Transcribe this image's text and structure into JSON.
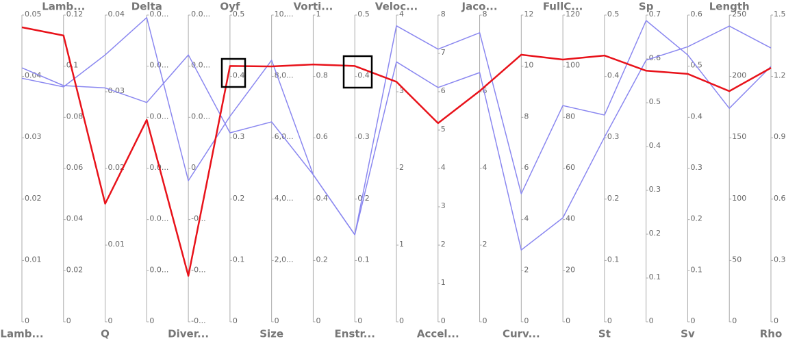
{
  "chart_data": {
    "type": "parallel",
    "dimensions": [
      {
        "name": "Lamb...",
        "lim": [
          0,
          0.05
        ],
        "ticks": [
          0,
          0.01,
          0.02,
          0.03,
          0.04,
          0.05
        ]
      },
      {
        "name": "Lamb...",
        "lim": [
          0,
          0.12
        ],
        "ticks": [
          0,
          0.02,
          0.04,
          0.06,
          0.08,
          0.1,
          0.12
        ]
      },
      {
        "name": "Q",
        "lim": [
          0,
          0.04
        ],
        "ticks": [
          0,
          0.01,
          0.02,
          0.03,
          0.04
        ]
      },
      {
        "name": "Delta",
        "lim": [
          0,
          0.06
        ],
        "ticks": [
          0,
          {
            "value": 0.01,
            "label": "0.0..."
          },
          {
            "value": 0.02,
            "label": "0.0..."
          },
          {
            "value": 0.03,
            "label": "0.0..."
          },
          {
            "value": 0.04,
            "label": "0.0..."
          },
          {
            "value": 0.05,
            "label": "0.0..."
          },
          {
            "value": 0.06,
            "label": "0.0..."
          }
        ]
      },
      {
        "name": "Diver...",
        "lim": [
          -0.03,
          0.03
        ],
        "ticks": [
          {
            "value": -0.03,
            "label": "-0..."
          },
          {
            "value": -0.02,
            "label": "-0..."
          },
          {
            "value": -0.01,
            "label": "-0..."
          },
          0,
          {
            "value": 0.01,
            "label": "0.0..."
          },
          {
            "value": 0.02,
            "label": "0.0..."
          },
          {
            "value": 0.03,
            "label": "0.0..."
          }
        ]
      },
      {
        "name": "Oyf",
        "lim": [
          0,
          0.5
        ],
        "ticks": [
          0,
          0.1,
          0.2,
          0.3,
          0.4,
          0.5
        ]
      },
      {
        "name": "Size",
        "lim": [
          0,
          10000
        ],
        "ticks": [
          0,
          {
            "value": 2000,
            "label": "2,0..."
          },
          {
            "value": 4000,
            "label": "4,0..."
          },
          {
            "value": 6000,
            "label": "6,0..."
          },
          {
            "value": 8000,
            "label": "8,0..."
          },
          {
            "value": 10000,
            "label": "10,..."
          }
        ]
      },
      {
        "name": "Vorti...",
        "lim": [
          0,
          1
        ],
        "ticks": [
          0,
          0.2,
          0.4,
          0.6,
          0.8,
          1
        ]
      },
      {
        "name": "Enstr...",
        "lim": [
          0,
          0.5
        ],
        "ticks": [
          0,
          0.1,
          0.2,
          0.3,
          0.4,
          0.5
        ]
      },
      {
        "name": "Veloc...",
        "lim": [
          0,
          4
        ],
        "ticks": [
          0,
          1,
          2,
          3,
          4
        ]
      },
      {
        "name": "Accel...",
        "lim": [
          0,
          8
        ],
        "ticks": [
          0,
          1,
          2,
          3,
          4,
          5,
          6,
          7,
          8
        ]
      },
      {
        "name": "Jaco...",
        "lim": [
          0,
          8
        ],
        "ticks": [
          0,
          2,
          4,
          6,
          8
        ]
      },
      {
        "name": "Curv...",
        "lim": [
          0,
          12
        ],
        "ticks": [
          0,
          2,
          4,
          6,
          8,
          10,
          12
        ]
      },
      {
        "name": "FullC...",
        "lim": [
          0,
          120
        ],
        "ticks": [
          0,
          20,
          40,
          60,
          80,
          100,
          120
        ]
      },
      {
        "name": "St",
        "lim": [
          0,
          0.5
        ],
        "ticks": [
          0,
          0.1,
          0.2,
          0.3,
          0.4,
          0.5
        ]
      },
      {
        "name": "Sp",
        "lim": [
          0,
          0.7
        ],
        "ticks": [
          0,
          0.1,
          0.2,
          0.3,
          0.4,
          0.5,
          0.6,
          0.7
        ]
      },
      {
        "name": "Sv",
        "lim": [
          0,
          0.6
        ],
        "ticks": [
          0,
          0.1,
          0.2,
          0.3,
          0.4,
          0.5,
          0.6
        ]
      },
      {
        "name": "Length",
        "lim": [
          0,
          250
        ],
        "ticks": [
          0,
          50,
          100,
          150,
          200,
          250
        ]
      },
      {
        "name": "Rho",
        "lim": [
          0,
          1.5
        ],
        "ticks": [
          0,
          0.3,
          0.6,
          0.9,
          1.2,
          1.5
        ]
      }
    ],
    "series": [
      {
        "color": "#8a87f0",
        "values": [
          0.0397,
          0.0919,
          0.0348,
          0.0595,
          -0.0024,
          0.335,
          8527,
          0.48,
          0.142,
          3.86,
          7.11,
          7.54,
          5.01,
          84.6,
          0.337,
          0.6875,
          0.522,
          174,
          1.249
        ]
      },
      {
        "color": "#8a87f0",
        "values": [
          0.0414,
          0.0924,
          0.0305,
          0.0429,
          0.0222,
          0.308,
          6518,
          0.48,
          0.142,
          3.39,
          6.11,
          6.5,
          2.81,
          40.7,
          0.301,
          0.597,
          0.538,
          241,
          1.339
        ]
      },
      {
        "color": "#e8121a",
        "values": [
          0.048,
          0.112,
          0.0154,
          0.0395,
          -0.021,
          0.417,
          8326,
          0.839,
          0.417,
          3.13,
          5.18,
          6.02,
          10.45,
          102.6,
          0.434,
          0.573,
          0.485,
          188,
          1.242
        ]
      }
    ]
  }
}
